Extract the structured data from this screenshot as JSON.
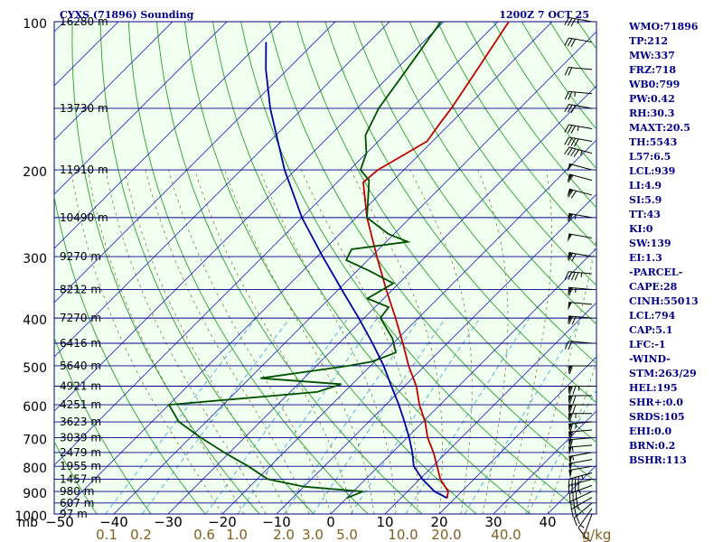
{
  "header": {
    "station": "CYXS (71896) Sounding",
    "datetime": "1200Z  7 OCT 25"
  },
  "indices": [
    "WMO:71896",
    "TP:212",
    "MW:337",
    "FRZ:718",
    "WB0:799",
    "PW:0.42",
    "RH:30.3",
    "MAXT:20.5",
    "TH:5543",
    "L57:6.5",
    "LCL:939",
    "LI:4.9",
    "SI:5.9",
    "TT:43",
    "KI:0",
    "SW:139",
    "EI:1.3",
    "-PARCEL-",
    "CAPE:28",
    "CINH:55013",
    "LCL:794",
    "CAP:5.1",
    "LFC:-1",
    "-WIND-",
    "STM:263/29",
    "HEL:195",
    "SHR+:0.0",
    "SRDS:105",
    "EHI:0.0",
    "BRN:0.2",
    "BSHR:113"
  ],
  "colors": {
    "background": "#ffffff",
    "plot_background": "#f0fff0",
    "isobar": "#00008b",
    "isotherm": "#3030c0",
    "dry_adiabat": "#2ca02c",
    "moist_adiabat": "#7a6a2a",
    "mixing_ratio": "#3aa0d0",
    "temperature": "#c00000",
    "dewpoint": "#005000",
    "parcel": "#0000a0",
    "label_text": "#000000",
    "mixing_label_text": "#806020"
  },
  "chart_data": {
    "type": "line",
    "subtype": "skew-T log-P diagram",
    "title": "CYXS (71896) Sounding",
    "xlabel": "",
    "ylabel": "mb",
    "ylim": [
      1000,
      100
    ],
    "xlim": [
      -50,
      50
    ],
    "log_scale_y": true,
    "pressure_ticks": [
      {
        "p": 100,
        "label": "100"
      },
      {
        "p": 200,
        "label": "200"
      },
      {
        "p": 300,
        "label": "300"
      },
      {
        "p": 400,
        "label": "400"
      },
      {
        "p": 500,
        "label": "500"
      },
      {
        "p": 600,
        "label": "600"
      },
      {
        "p": 700,
        "label": "700"
      },
      {
        "p": 800,
        "label": "800"
      },
      {
        "p": 900,
        "label": "900"
      },
      {
        "p": 1000,
        "label": "1000"
      }
    ],
    "temperature_ticks": [
      {
        "t": -50,
        "label": "−50"
      },
      {
        "t": -40,
        "label": "−40"
      },
      {
        "t": -30,
        "label": "−30"
      },
      {
        "t": -20,
        "label": "−20"
      },
      {
        "t": -10,
        "label": "−10"
      },
      {
        "t": 0,
        "label": "0"
      },
      {
        "t": 10,
        "label": "10"
      },
      {
        "t": 20,
        "label": "20"
      },
      {
        "t": 30,
        "label": "30"
      },
      {
        "t": 40,
        "label": "40"
      }
    ],
    "height_labels": [
      {
        "p": 100,
        "label": "16280 m"
      },
      {
        "p": 150,
        "label": "13730 m"
      },
      {
        "p": 200,
        "label": "11910 m"
      },
      {
        "p": 250,
        "label": "10490 m"
      },
      {
        "p": 300,
        "label": "9270 m"
      },
      {
        "p": 350,
        "label": "8212 m"
      },
      {
        "p": 400,
        "label": "7270 m"
      },
      {
        "p": 450,
        "label": "6416 m"
      },
      {
        "p": 500,
        "label": "5640 m"
      },
      {
        "p": 550,
        "label": "4921 m"
      },
      {
        "p": 600,
        "label": "4251 m"
      },
      {
        "p": 650,
        "label": "3623 m"
      },
      {
        "p": 700,
        "label": "3039 m"
      },
      {
        "p": 750,
        "label": "2479 m"
      },
      {
        "p": 800,
        "label": "1955 m"
      },
      {
        "p": 850,
        "label": "1457 m"
      },
      {
        "p": 900,
        "label": "980 m"
      },
      {
        "p": 950,
        "label": "607 m"
      },
      {
        "p": 1000,
        "label": "97 m"
      }
    ],
    "mixing_ratio_labels": [
      {
        "w": 0.1,
        "label": "0.1"
      },
      {
        "w": 0.2,
        "label": "0.2"
      },
      {
        "w": 0.6,
        "label": "0.6"
      },
      {
        "w": 1.0,
        "label": "1.0"
      },
      {
        "w": 2.0,
        "label": "2.0"
      },
      {
        "w": 3.0,
        "label": "3.0"
      },
      {
        "w": 5.0,
        "label": "5.0"
      },
      {
        "w": 10.0,
        "label": "10.0"
      },
      {
        "w": 20.0,
        "label": "20.0"
      },
      {
        "w": 40.0,
        "label": "40.0"
      }
    ],
    "mixing_unit": "g/kg",
    "series": [
      {
        "role": "temperature",
        "points": [
          {
            "p": 928,
            "t": 18.5
          },
          {
            "p": 900,
            "t": 17.5
          },
          {
            "p": 850,
            "t": 13.8
          },
          {
            "p": 800,
            "t": 10.8
          },
          {
            "p": 750,
            "t": 7.6
          },
          {
            "p": 700,
            "t": 3.8
          },
          {
            "p": 650,
            "t": 0.4
          },
          {
            "p": 600,
            "t": -3.8
          },
          {
            "p": 550,
            "t": -7.8
          },
          {
            "p": 500,
            "t": -13.0
          },
          {
            "p": 450,
            "t": -18.2
          },
          {
            "p": 400,
            "t": -24.2
          },
          {
            "p": 350,
            "t": -31.2
          },
          {
            "p": 300,
            "t": -39.0
          },
          {
            "p": 250,
            "t": -48.0
          },
          {
            "p": 212,
            "t": -55.2
          },
          {
            "p": 200,
            "t": -54.8
          },
          {
            "p": 175,
            "t": -51.0
          },
          {
            "p": 160,
            "t": -52.0
          },
          {
            "p": 150,
            "t": -52.6
          },
          {
            "p": 125,
            "t": -55.0
          },
          {
            "p": 100,
            "t": -58.0
          }
        ]
      },
      {
        "role": "dewpoint",
        "points": [
          {
            "p": 928,
            "t": 0.0
          },
          {
            "p": 900,
            "t": 1.8
          },
          {
            "p": 880,
            "t": -10.0
          },
          {
            "p": 850,
            "t": -18.0
          },
          {
            "p": 800,
            "t": -24.0
          },
          {
            "p": 750,
            "t": -31.0
          },
          {
            "p": 700,
            "t": -38.0
          },
          {
            "p": 650,
            "t": -45.0
          },
          {
            "p": 600,
            "t": -50.0
          },
          {
            "p": 565,
            "t": -25.0
          },
          {
            "p": 545,
            "t": -22.0
          },
          {
            "p": 530,
            "t": -38.0
          },
          {
            "p": 500,
            "t": -24.0
          },
          {
            "p": 490,
            "t": -20.5
          },
          {
            "p": 470,
            "t": -17.8
          },
          {
            "p": 440,
            "t": -21.0
          },
          {
            "p": 400,
            "t": -27.0
          },
          {
            "p": 380,
            "t": -27.5
          },
          {
            "p": 365,
            "t": -33.0
          },
          {
            "p": 340,
            "t": -31.0
          },
          {
            "p": 320,
            "t": -38.0
          },
          {
            "p": 305,
            "t": -44.0
          },
          {
            "p": 290,
            "t": -45.0
          },
          {
            "p": 280,
            "t": -36.0
          },
          {
            "p": 270,
            "t": -41.0
          },
          {
            "p": 250,
            "t": -48.0
          },
          {
            "p": 210,
            "t": -54.5
          },
          {
            "p": 200,
            "t": -58.0
          },
          {
            "p": 185,
            "t": -60.0
          },
          {
            "p": 170,
            "t": -63.5
          },
          {
            "p": 150,
            "t": -66.0
          },
          {
            "p": 125,
            "t": -68.0
          },
          {
            "p": 100,
            "t": -70.5
          }
        ]
      },
      {
        "role": "parcel",
        "points": [
          {
            "p": 928,
            "t": 18.5
          },
          {
            "p": 900,
            "t": 15.0
          },
          {
            "p": 850,
            "t": 10.5
          },
          {
            "p": 800,
            "t": 6.5
          },
          {
            "p": 750,
            "t": 3.7
          },
          {
            "p": 700,
            "t": 0.4
          },
          {
            "p": 650,
            "t": -3.4
          },
          {
            "p": 600,
            "t": -7.6
          },
          {
            "p": 550,
            "t": -12.4
          },
          {
            "p": 500,
            "t": -17.6
          },
          {
            "p": 450,
            "t": -23.8
          },
          {
            "p": 400,
            "t": -31.0
          },
          {
            "p": 350,
            "t": -39.4
          },
          {
            "p": 300,
            "t": -49.0
          },
          {
            "p": 250,
            "t": -60.0
          },
          {
            "p": 200,
            "t": -72.0
          },
          {
            "p": 150,
            "t": -86.0
          },
          {
            "p": 125,
            "t": -94.0
          },
          {
            "p": 110,
            "t": -99.0
          }
        ]
      }
    ],
    "winds": [
      {
        "p": 1000,
        "dir": 200,
        "spd": 10
      },
      {
        "p": 975,
        "dir": 215,
        "spd": 15
      },
      {
        "p": 950,
        "dir": 230,
        "spd": 20
      },
      {
        "p": 925,
        "dir": 240,
        "spd": 25
      },
      {
        "p": 900,
        "dir": 245,
        "spd": 30
      },
      {
        "p": 875,
        "dir": 250,
        "spd": 35
      },
      {
        "p": 850,
        "dir": 255,
        "spd": 40
      },
      {
        "p": 825,
        "dir": 255,
        "spd": 45
      },
      {
        "p": 800,
        "dir": 260,
        "spd": 50
      },
      {
        "p": 775,
        "dir": 260,
        "spd": 50
      },
      {
        "p": 750,
        "dir": 260,
        "spd": 55
      },
      {
        "p": 725,
        "dir": 265,
        "spd": 55
      },
      {
        "p": 700,
        "dir": 265,
        "spd": 60
      },
      {
        "p": 675,
        "dir": 265,
        "spd": 60
      },
      {
        "p": 650,
        "dir": 265,
        "spd": 65
      },
      {
        "p": 625,
        "dir": 270,
        "spd": 65
      },
      {
        "p": 600,
        "dir": 270,
        "spd": 70
      },
      {
        "p": 575,
        "dir": 270,
        "spd": 70
      },
      {
        "p": 550,
        "dir": 270,
        "spd": 75
      },
      {
        "p": 500,
        "dir": 270,
        "spd": 60
      },
      {
        "p": 450,
        "dir": 275,
        "spd": 20
      },
      {
        "p": 400,
        "dir": 275,
        "spd": 70
      },
      {
        "p": 375,
        "dir": 275,
        "spd": 50
      },
      {
        "p": 350,
        "dir": 275,
        "spd": 65
      },
      {
        "p": 325,
        "dir": 275,
        "spd": 45
      },
      {
        "p": 300,
        "dir": 280,
        "spd": 70
      },
      {
        "p": 275,
        "dir": 280,
        "spd": 50
      },
      {
        "p": 250,
        "dir": 280,
        "spd": 65
      },
      {
        "p": 225,
        "dir": 285,
        "spd": 70
      },
      {
        "p": 210,
        "dir": 285,
        "spd": 60
      },
      {
        "p": 200,
        "dir": 285,
        "spd": 50
      },
      {
        "p": 185,
        "dir": 285,
        "spd": 45
      },
      {
        "p": 175,
        "dir": 280,
        "spd": 40
      },
      {
        "p": 165,
        "dir": 280,
        "spd": 35
      },
      {
        "p": 150,
        "dir": 280,
        "spd": 30
      },
      {
        "p": 140,
        "dir": 275,
        "spd": 25
      },
      {
        "p": 125,
        "dir": 275,
        "spd": 20
      },
      {
        "p": 110,
        "dir": 280,
        "spd": 30
      },
      {
        "p": 100,
        "dir": 280,
        "spd": 35
      }
    ]
  }
}
